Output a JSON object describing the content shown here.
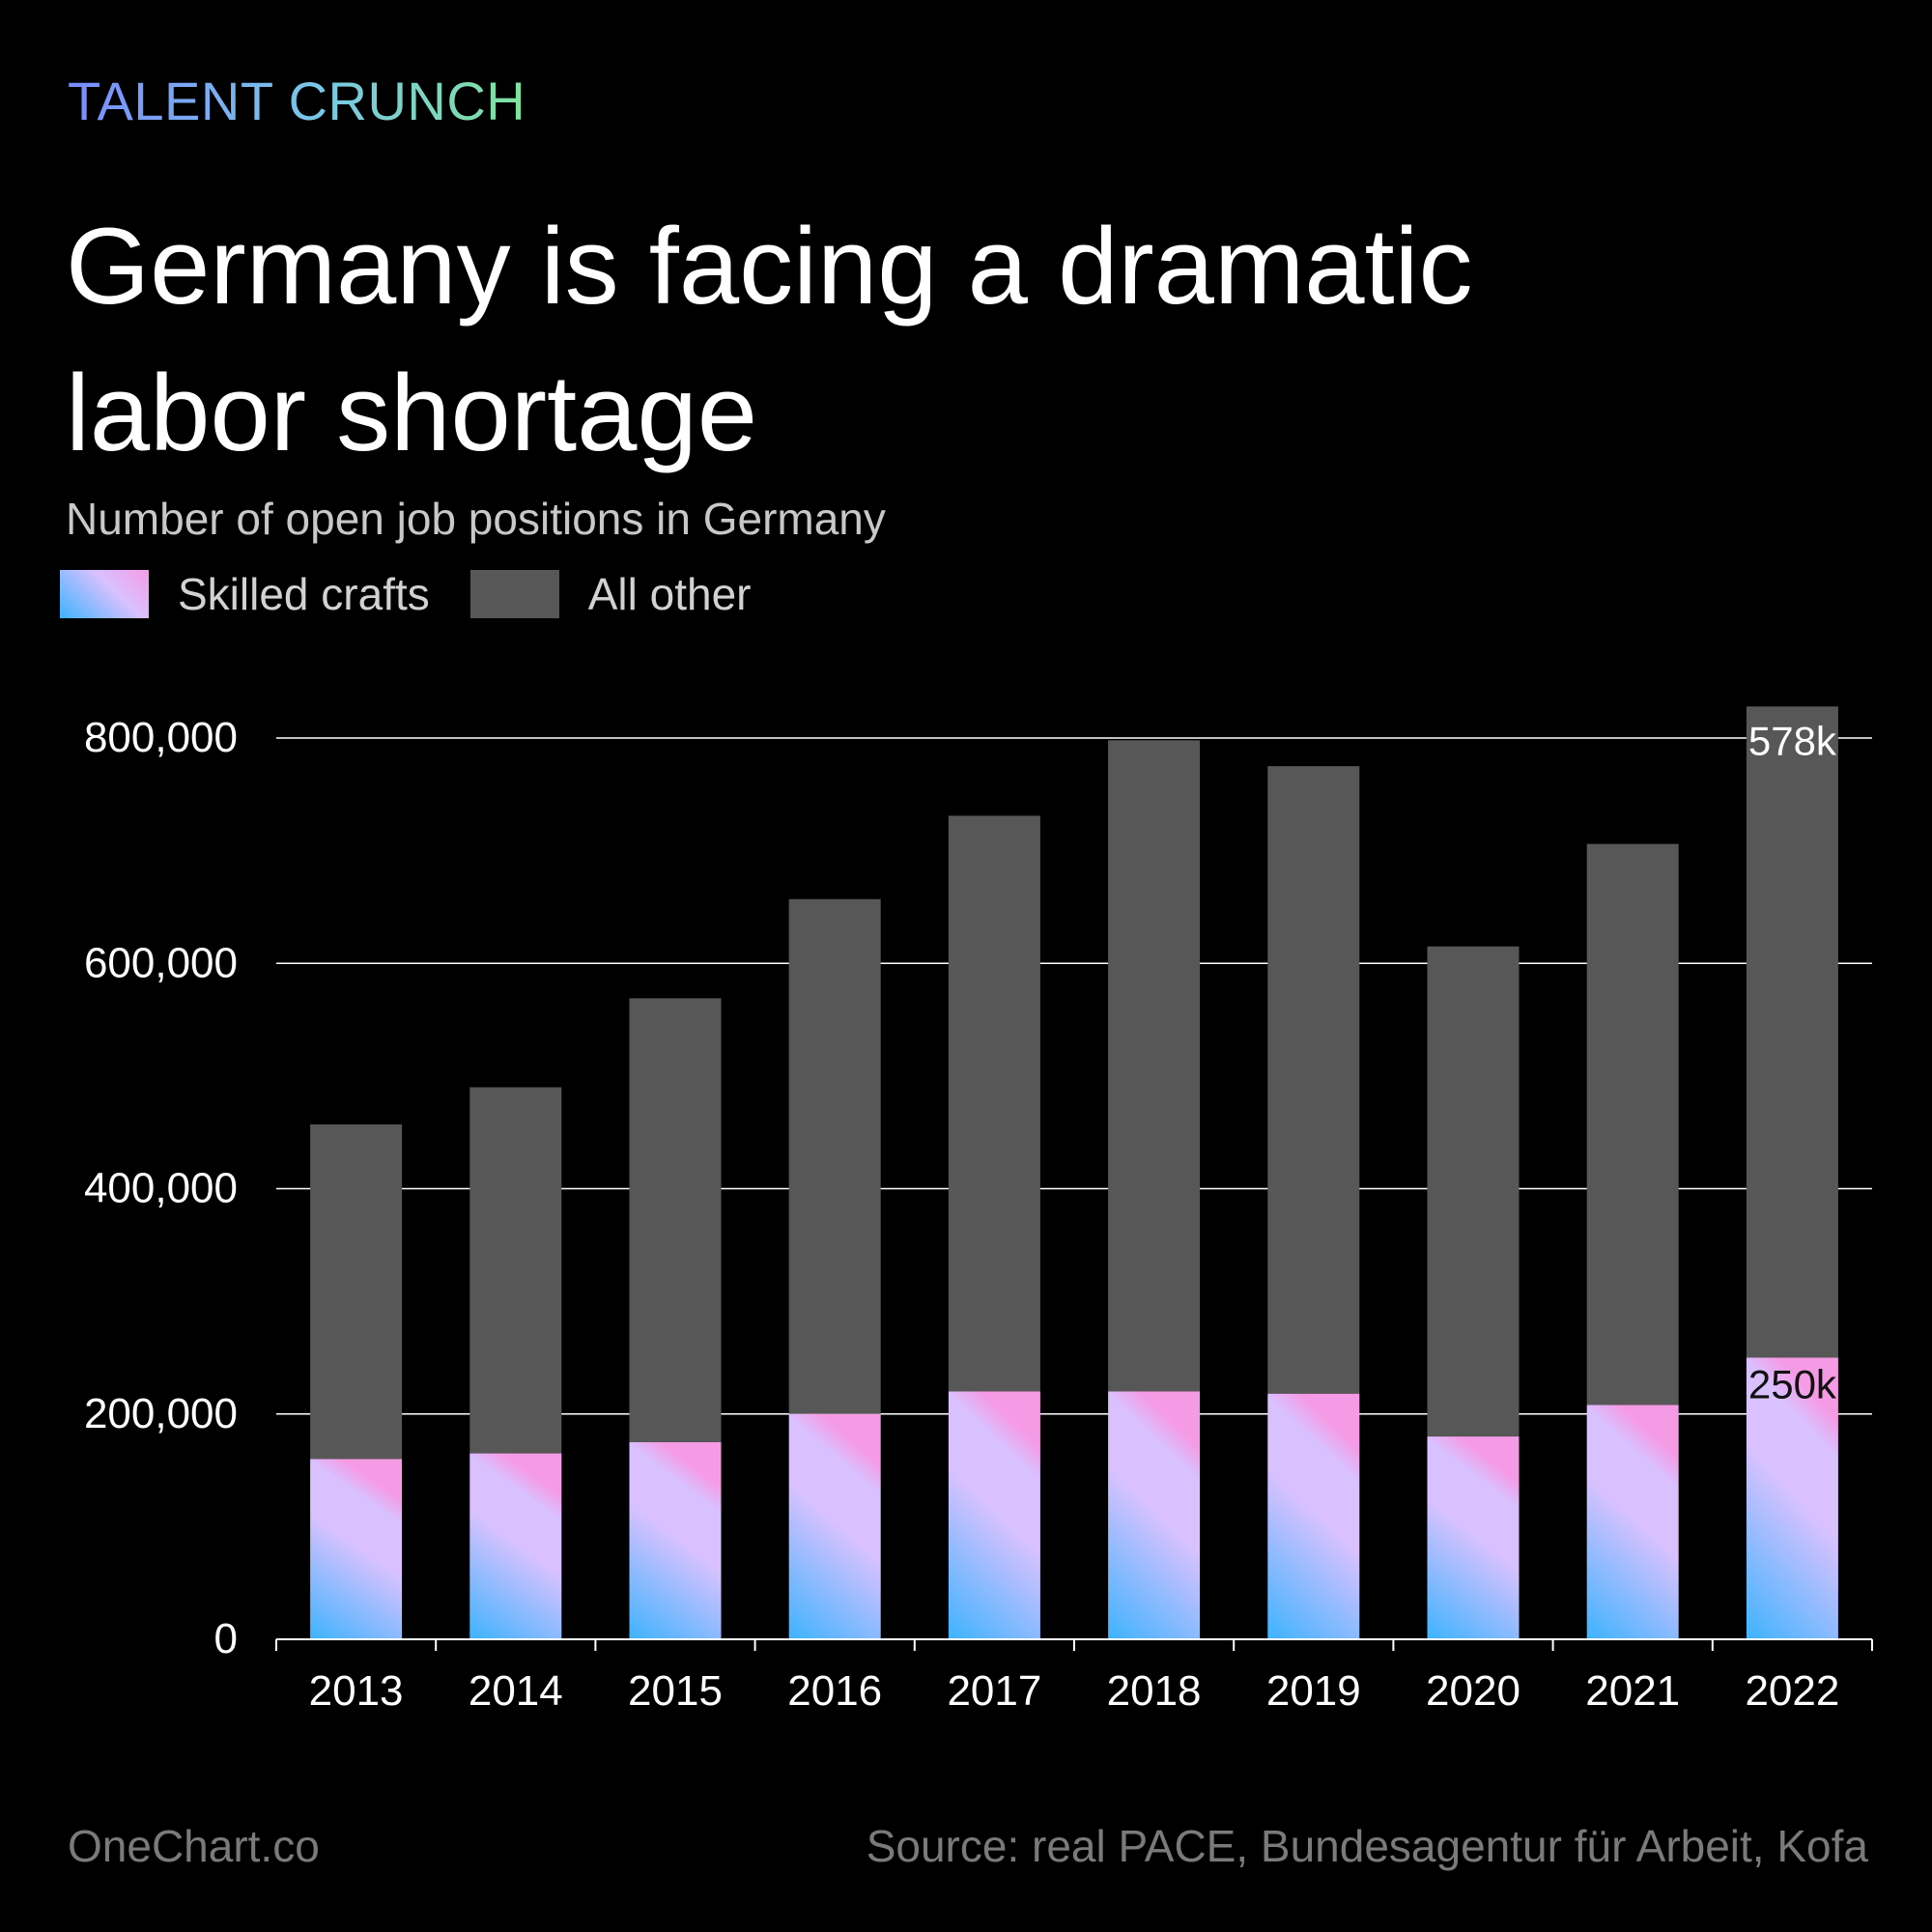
{
  "header": {
    "kicker": "TALENT CRUNCH",
    "title": "Germany is facing a dramatic labor shortage",
    "subtitle": "Number of open job positions in Germany"
  },
  "legend": {
    "crafts_label": "Skilled crafts",
    "other_label": "All other"
  },
  "colors": {
    "other": "#575757",
    "crafts_bottom": "#3db3ff",
    "crafts_mid": "#d9c1ff",
    "crafts_top": "#f59be5",
    "grid": "#ffffff",
    "background": "#000000"
  },
  "chart_data": {
    "type": "bar",
    "stacked": true,
    "categories": [
      "2013",
      "2014",
      "2015",
      "2016",
      "2017",
      "2018",
      "2019",
      "2020",
      "2021",
      "2022"
    ],
    "series": [
      {
        "name": "Skilled crafts",
        "values": [
          160000,
          165000,
          175000,
          200000,
          220000,
          220000,
          218000,
          180000,
          208000,
          250000
        ]
      },
      {
        "name": "All other",
        "values": [
          297000,
          325000,
          394000,
          457000,
          511000,
          578000,
          557000,
          435000,
          498000,
          578000
        ]
      }
    ],
    "ylim": [
      0,
      800000
    ],
    "yticks": [
      0,
      200000,
      400000,
      600000,
      800000
    ],
    "ytick_labels": [
      "0",
      "200,000",
      "400,000",
      "600,000",
      "800,000"
    ],
    "annotations": [
      {
        "category": "2022",
        "series": "All other",
        "text": "578k"
      },
      {
        "category": "2022",
        "series": "Skilled crafts",
        "text": "250k"
      }
    ],
    "grid": true,
    "legend_position": "top-left"
  },
  "footer": {
    "brand": "OneChart.co",
    "source": "Source: real PACE, Bundesagentur für Arbeit, Kofa"
  }
}
